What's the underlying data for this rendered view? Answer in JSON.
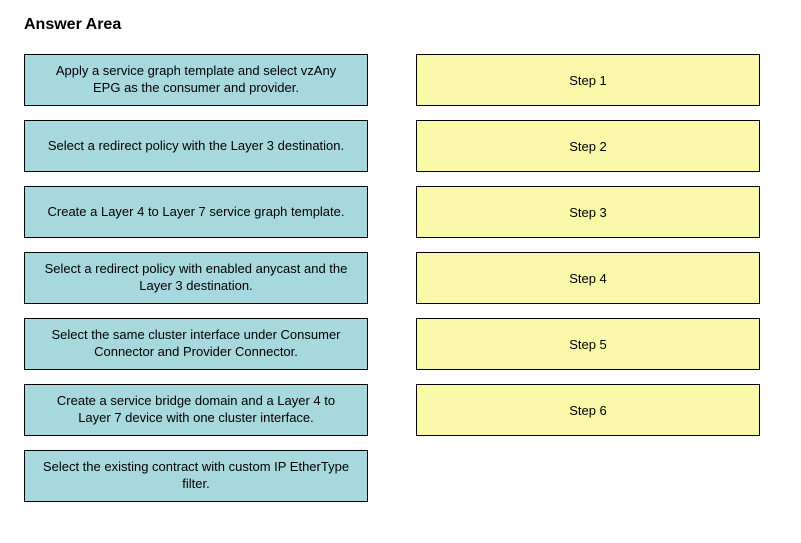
{
  "heading": "Answer Area",
  "colors": {
    "option_bg": "#a7d8de",
    "step_bg": "#f9f7a8",
    "border": "#000000",
    "text": "#000000",
    "page_bg": "#ffffff"
  },
  "options": [
    "Apply a service graph template and select vzAny EPG as the consumer and provider.",
    "Select a redirect policy with the Layer 3 destination.",
    "Create a Layer 4 to Layer 7 service graph template.",
    "Select a redirect policy with enabled anycast and the Layer 3 destination.",
    "Select the same cluster interface under Consumer Connector and Provider Connector.",
    "Create a service bridge domain and a Layer 4 to Layer 7 device with one cluster interface.",
    "Select the existing contract with custom IP EtherType filter."
  ],
  "steps": [
    "Step 1",
    "Step 2",
    "Step 3",
    "Step 4",
    "Step 5",
    "Step 6"
  ]
}
